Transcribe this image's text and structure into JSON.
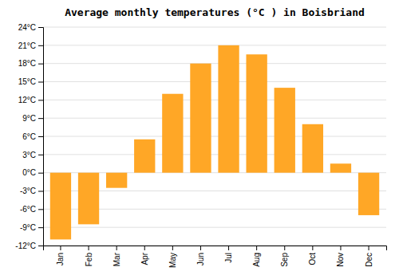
{
  "chart_data": {
    "type": "bar",
    "title": "Average monthly temperatures (°C ) in Boisbriand",
    "categories": [
      "Jan",
      "Feb",
      "Mar",
      "Apr",
      "May",
      "Jun",
      "Jul",
      "Aug",
      "Sep",
      "Oct",
      "Nov",
      "Dec"
    ],
    "values": [
      -11,
      -8.5,
      -2.5,
      5.5,
      13,
      18,
      21,
      19.5,
      14,
      8,
      1.5,
      -7
    ],
    "color": "#FFA726",
    "ylim": [
      -12,
      24
    ],
    "yticks": [
      {
        "value": -12,
        "label": "-12°C"
      },
      {
        "value": -9,
        "label": "-9°C"
      },
      {
        "value": -6,
        "label": "-6°C"
      },
      {
        "value": -3,
        "label": "-3°C"
      },
      {
        "value": 0,
        "label": "0°C"
      },
      {
        "value": 3,
        "label": "3°C"
      },
      {
        "value": 6,
        "label": "6°C"
      },
      {
        "value": 9,
        "label": "9°C"
      },
      {
        "value": 12,
        "label": "12°C"
      },
      {
        "value": 15,
        "label": "15°C"
      },
      {
        "value": 18,
        "label": "18°C"
      },
      {
        "value": 21,
        "label": "21°C"
      },
      {
        "value": 24,
        "label": "24°C"
      }
    ],
    "grid": true
  }
}
